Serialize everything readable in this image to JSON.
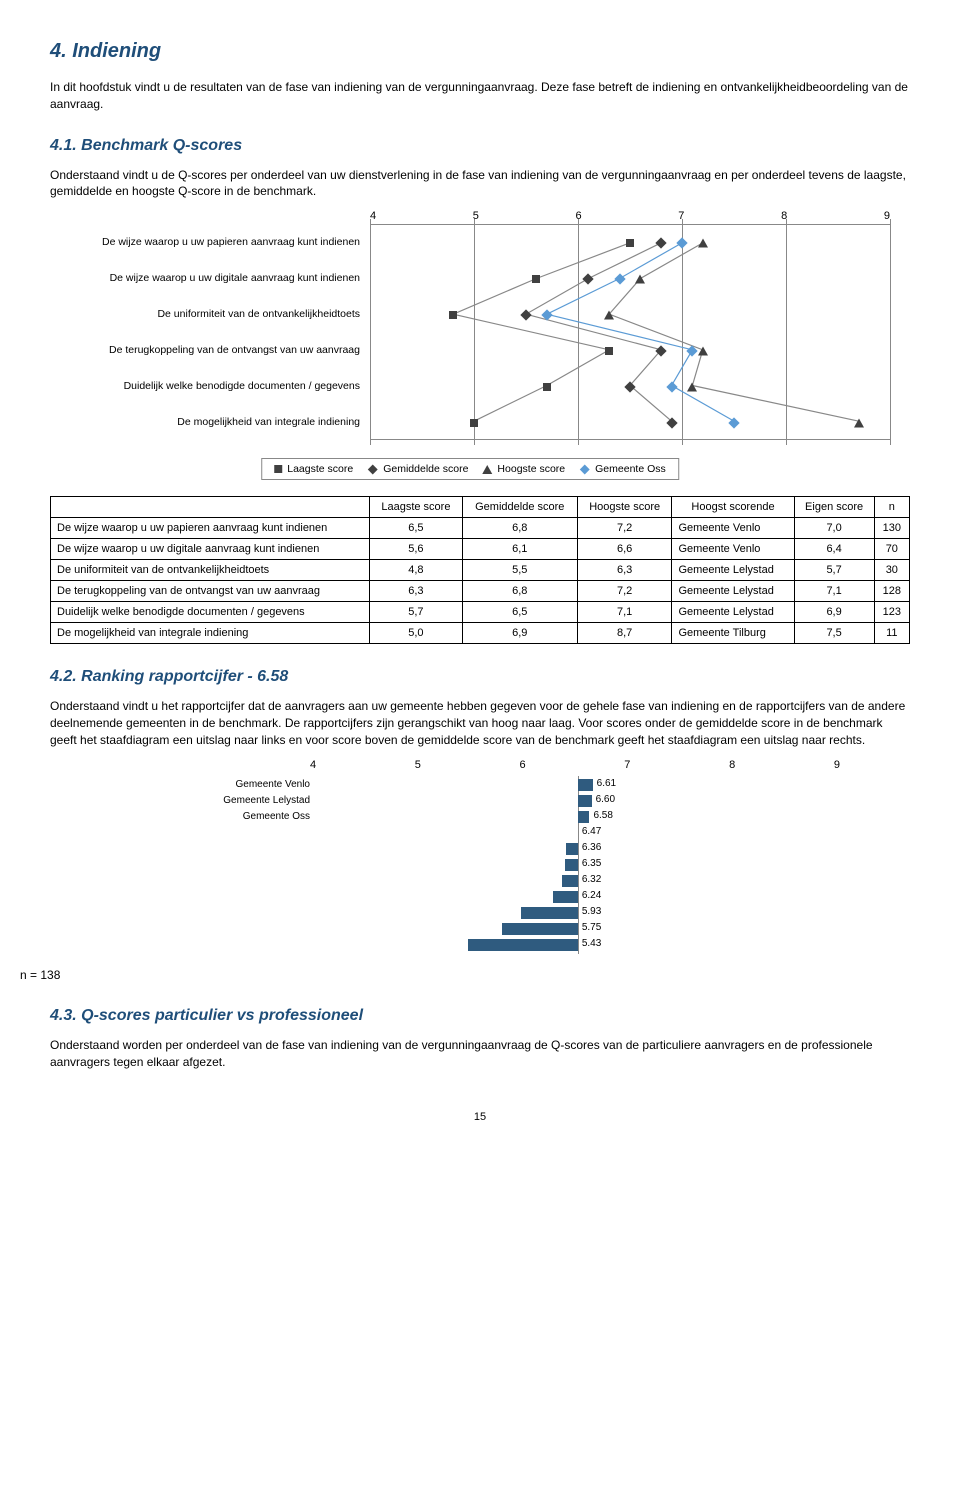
{
  "section_title": "4. Indiening",
  "intro_p": "In dit hoofdstuk vindt u de resultaten van de fase van indiening van de vergunningaanvraag. Deze fase betreft de indiening en ontvankelijkheidbeoordeling van de aanvraag.",
  "sub41_title": "4.1. Benchmark Q-scores",
  "sub41_p": "Onderstaand vindt u de Q-scores per onderdeel van uw dienstverlening in de fase van indiening van de vergunningaanvraag en per onderdeel tevens de laagste, gemiddelde en hoogste Q-score in de benchmark.",
  "chart1": {
    "x_min": 4,
    "x_max": 9,
    "x_ticks": [
      "4",
      "5",
      "6",
      "7",
      "8",
      "9"
    ],
    "categories": [
      "De wijze waarop u uw papieren aanvraag kunt indienen",
      "De wijze waarop u uw digitale aanvraag kunt indienen",
      "De uniformiteit van de ontvankelijkheidtoets",
      "De terugkoppeling van de ontvangst van uw aanvraag",
      "Duidelijk welke benodigde documenten / gegevens",
      "De mogelijkheid van integrale indiening"
    ],
    "series": {
      "laagste": [
        6.5,
        5.6,
        4.8,
        6.3,
        5.7,
        5.0
      ],
      "gemiddelde": [
        6.8,
        6.1,
        5.5,
        6.8,
        6.5,
        6.9
      ],
      "hoogste": [
        7.2,
        6.6,
        6.3,
        7.2,
        7.1,
        8.7
      ],
      "oss": [
        7.0,
        6.4,
        5.7,
        7.1,
        6.9,
        7.5
      ]
    },
    "colors": {
      "laagste": "#404040",
      "gemiddelde": "#404040",
      "hoogste": "#404040",
      "oss": "#5b9bd5",
      "line": "#888888"
    },
    "legend": [
      "Laagste score",
      "Gemiddelde score",
      "Hoogste score",
      "Gemeente Oss"
    ]
  },
  "table": {
    "headers": [
      "",
      "Laagste score",
      "Gemiddelde score",
      "Hoogste score",
      "Hoogst scorende",
      "Eigen score",
      "n"
    ],
    "rows": [
      [
        "De wijze waarop u uw papieren aanvraag kunt indienen",
        "6,5",
        "6,8",
        "7,2",
        "Gemeente Venlo",
        "7,0",
        "130"
      ],
      [
        "De wijze waarop u uw digitale aanvraag kunt indienen",
        "5,6",
        "6,1",
        "6,6",
        "Gemeente Venlo",
        "6,4",
        "70"
      ],
      [
        "De uniformiteit van de ontvankelijkheidtoets",
        "4,8",
        "5,5",
        "6,3",
        "Gemeente Lelystad",
        "5,7",
        "30"
      ],
      [
        "De terugkoppeling van de ontvangst van uw aanvraag",
        "6,3",
        "6,8",
        "7,2",
        "Gemeente Lelystad",
        "7,1",
        "128"
      ],
      [
        "Duidelijk welke benodigde documenten / gegevens",
        "5,7",
        "6,5",
        "7,1",
        "Gemeente Lelystad",
        "6,9",
        "123"
      ],
      [
        "De mogelijkheid van integrale indiening",
        "5,0",
        "6,9",
        "8,7",
        "Gemeente Tilburg",
        "7,5",
        "11"
      ]
    ]
  },
  "sub42_title": "4.2. Ranking rapportcijfer - 6.58",
  "sub42_p": "Onderstaand vindt u het rapportcijfer dat de aanvragers aan uw gemeente hebben gegeven voor de gehele fase van indiening en de rapportcijfers van de andere deelnemende gemeenten in de benchmark. De rapportcijfers zijn gerangschikt van hoog naar laag. Voor scores onder de gemiddelde score in de benchmark geeft het staafdiagram een uitslag naar links en voor score boven de gemiddelde score van de benchmark geeft het staafdiagram een uitslag naar rechts.",
  "chart2": {
    "x_min": 4,
    "x_max": 9,
    "x_ticks": [
      "4",
      "5",
      "6",
      "7",
      "8",
      "9"
    ],
    "zero_at": 6.47,
    "bar_color": "#2f5b7f",
    "rows": [
      {
        "label": "Gemeente Venlo",
        "value": 6.61
      },
      {
        "label": "Gemeente Lelystad",
        "value": 6.6
      },
      {
        "label": "Gemeente Oss",
        "value": 6.58
      },
      {
        "label": "",
        "value": 6.47
      },
      {
        "label": "",
        "value": 6.36
      },
      {
        "label": "",
        "value": 6.35
      },
      {
        "label": "",
        "value": 6.32
      },
      {
        "label": "",
        "value": 6.24
      },
      {
        "label": "",
        "value": 5.93
      },
      {
        "label": "",
        "value": 5.75
      },
      {
        "label": "",
        "value": 5.43
      }
    ]
  },
  "n_note": "n = 138",
  "sub43_title": "4.3. Q-scores particulier vs professioneel",
  "sub43_p": "Onderstaand worden per onderdeel van de fase van indiening van de vergunningaanvraag de Q-scores van de particuliere aanvragers en de professionele aanvragers tegen elkaar afgezet.",
  "page_number": "15"
}
